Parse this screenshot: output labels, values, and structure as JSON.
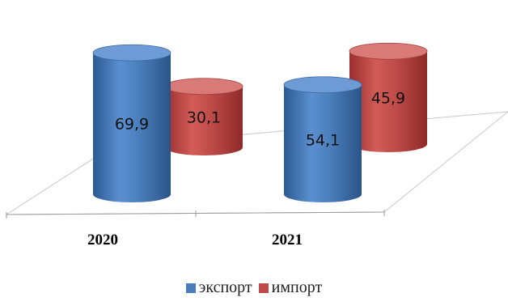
{
  "chart_data": {
    "type": "bar",
    "style": "3d-cylinder",
    "categories": [
      "2020",
      "2021"
    ],
    "series": [
      {
        "name": "экспорт",
        "values": [
          69.9,
          54.1
        ],
        "labels": [
          "69,9",
          "54,1"
        ],
        "color": "#4a7ebb"
      },
      {
        "name": "импорт",
        "values": [
          30.1,
          45.9
        ],
        "labels": [
          "30,1",
          "45,9"
        ],
        "color": "#be4b48"
      }
    ],
    "title": "",
    "xlabel": "",
    "ylabel": "",
    "grid": false,
    "legend_position": "bottom"
  }
}
